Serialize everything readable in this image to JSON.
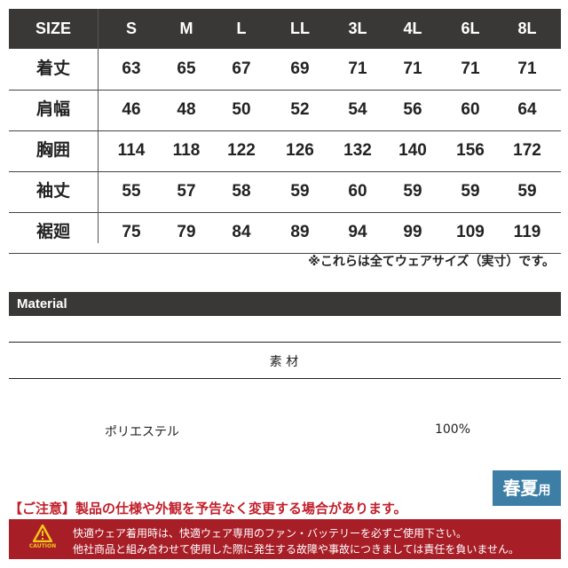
{
  "size_table": {
    "header_label": "SIZE",
    "sizes": [
      "S",
      "M",
      "L",
      "LL",
      "3L",
      "4L",
      "6L",
      "8L"
    ],
    "rows": [
      {
        "label": "着丈",
        "values": [
          "63",
          "65",
          "67",
          "69",
          "71",
          "71",
          "71",
          "71"
        ]
      },
      {
        "label": "肩幅",
        "values": [
          "46",
          "48",
          "50",
          "52",
          "54",
          "56",
          "60",
          "64"
        ]
      },
      {
        "label": "胸囲",
        "values": [
          "114",
          "118",
          "122",
          "126",
          "132",
          "140",
          "156",
          "172"
        ]
      },
      {
        "label": "袖丈",
        "values": [
          "55",
          "57",
          "58",
          "59",
          "60",
          "59",
          "59",
          "59"
        ]
      },
      {
        "label": "裾廻",
        "values": [
          "75",
          "79",
          "84",
          "89",
          "94",
          "99",
          "109",
          "119"
        ]
      }
    ],
    "note": "※これらは全てウェアサイズ（実寸）です。"
  },
  "material": {
    "title": "Material",
    "column_header": "素 材",
    "name": "ポリエステル",
    "percent": "100%"
  },
  "notice": "【ご注意】製品の仕様や外観を予告なく変更する場合があります。",
  "season_badge": {
    "main": "春夏",
    "suffix": "用",
    "color": "#3d7ea6"
  },
  "caution_banner": {
    "icon": "warning-triangle-icon",
    "icon_label": "CAUTION",
    "line1": "快適ウェア着用時は、快適ウェア専用のファン・バッテリーを必ずご使用下さい。",
    "line2": "他社商品と組み合わせて使用した際に発生する故障や事故につきましては責任を負いません。",
    "color": "#a81e27"
  }
}
